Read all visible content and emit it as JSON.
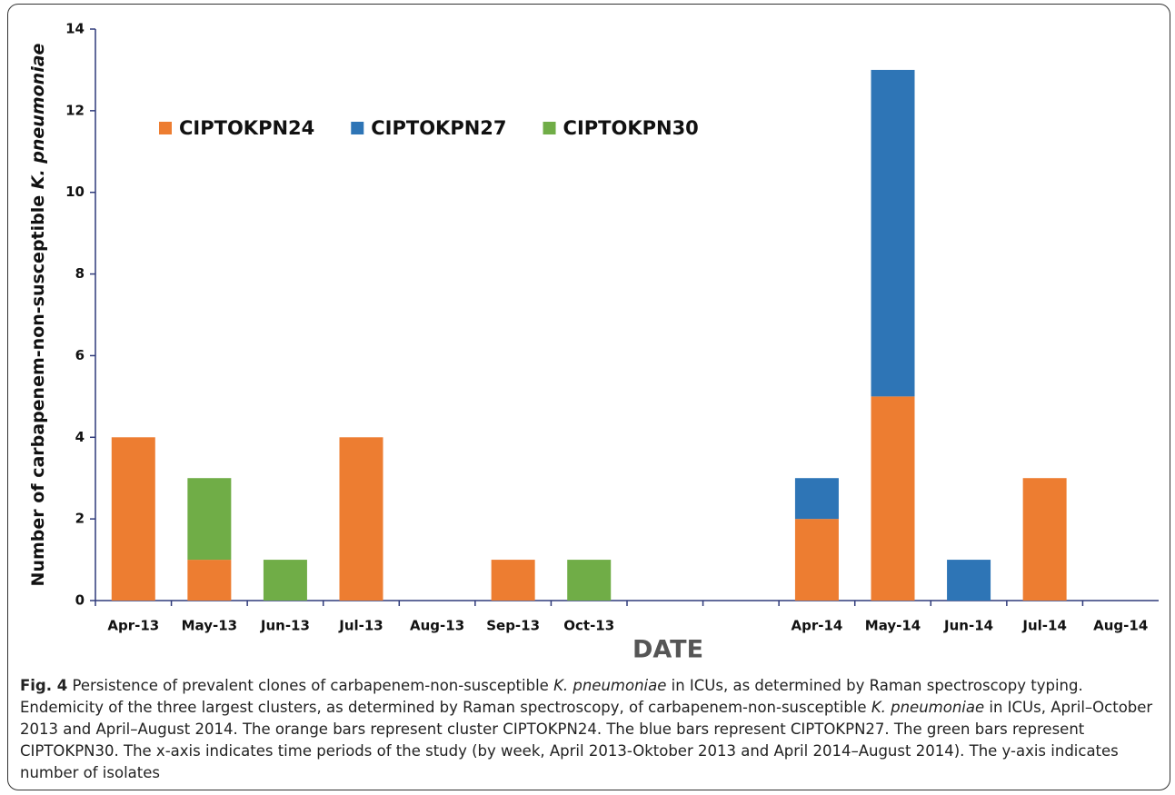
{
  "chart_data": {
    "type": "bar",
    "stacked": true,
    "ylabel": {
      "text": "Number of carbapenem-non-susceptible ",
      "italic": "K. pneumoniae"
    },
    "xlabel": "DATE",
    "categories": [
      "Apr-13",
      "May-13",
      "Jun-13",
      "Jul-13",
      "Aug-13",
      "Sep-13",
      "Oct-13",
      null,
      null,
      "Apr-14",
      "May-14",
      "Jun-14",
      "Jul-14",
      "Aug-14"
    ],
    "series": [
      {
        "name": "CIPTOKPN24",
        "color": "#ed7d31",
        "values": [
          4,
          1,
          0,
          4,
          0,
          1,
          0,
          0,
          0,
          2,
          5,
          0,
          3,
          0
        ]
      },
      {
        "name": "CIPTOKPN27",
        "color": "#2e75b6",
        "values": [
          0,
          0,
          0,
          0,
          0,
          0,
          0,
          0,
          0,
          1,
          8,
          1,
          0,
          0
        ]
      },
      {
        "name": "CIPTOKPN30",
        "color": "#70ad47",
        "values": [
          0,
          2,
          1,
          0,
          0,
          0,
          1,
          0,
          0,
          0,
          0,
          0,
          0,
          0
        ]
      }
    ],
    "ylim": [
      0,
      14
    ],
    "yticks": [
      0,
      2,
      4,
      6,
      8,
      10,
      12,
      14
    ],
    "grid": false,
    "legend": "upper left"
  },
  "caption": [
    {
      "text": "Fig. 4",
      "style": "bold"
    },
    {
      "text": " Persistence of prevalent clones of carbapenem-non-susceptible ",
      "style": "normal"
    },
    {
      "text": "K. pneumoniae",
      "style": "italic"
    },
    {
      "text": " in ICUs, as determined by Raman spectroscopy typing. Endemicity of the three largest clusters, as determined by Raman spectroscopy, of carbapenem-non-susceptible ",
      "style": "normal"
    },
    {
      "text": "K. pneumoniae",
      "style": "italic"
    },
    {
      "text": " in ICUs, April–October 2013 and April–August 2014. The orange bars represent cluster CIPTOKPN24. The blue bars represent CIPTOKPN27. The green bars represent CIPTOKPN30. The x-axis indicates time periods of the study (by week, April 2013-Oktober 2013 and April 2014–August 2014). The y-axis indicates number of isolates",
      "style": "normal"
    }
  ]
}
